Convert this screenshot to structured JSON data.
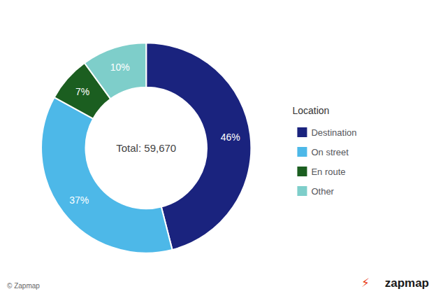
{
  "chart_data": {
    "type": "pie",
    "categories": [
      "Destination",
      "On street",
      "En route",
      "Other"
    ],
    "values": [
      46,
      37,
      7,
      10
    ],
    "value_labels": [
      "46%",
      "37%",
      "7%",
      "10%"
    ],
    "colors": [
      "#1a237e",
      "#4db8e8",
      "#1b5e20",
      "#7ececa"
    ],
    "data_labels": true,
    "center_text": "Total: 59,670",
    "legend_title": "Location",
    "legend": "right",
    "annotations": [
      {
        "text": "⚡",
        "color": "#e8350f"
      },
      {
        "text": "zapmap"
      },
      {
        "text": "© Zapmap"
      }
    ]
  }
}
